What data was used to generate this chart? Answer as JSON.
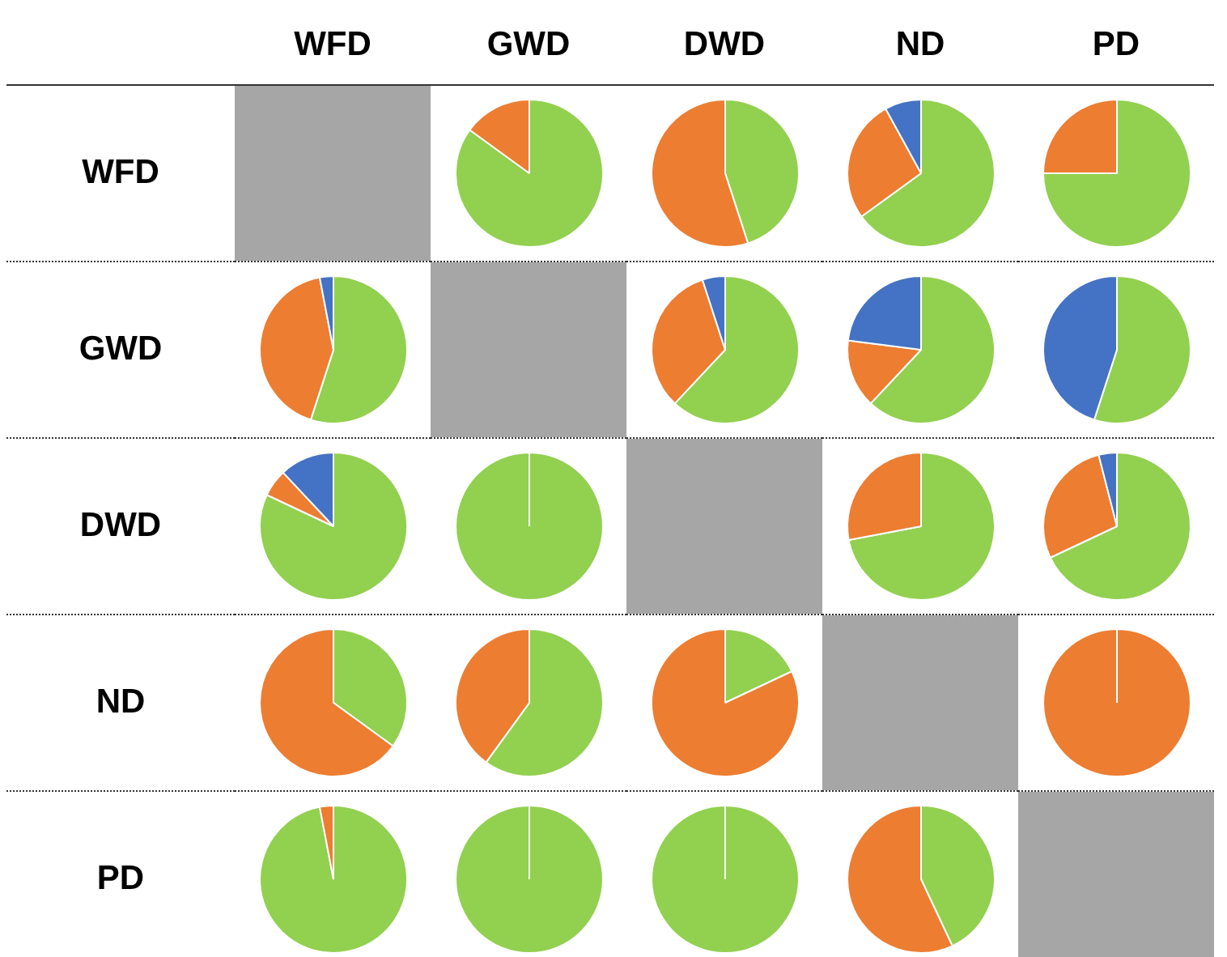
{
  "chart_data": [
    {
      "type": "other",
      "categories": [
        "WFD",
        "GWD",
        "DWD",
        "ND",
        "PD"
      ],
      "y_categories": [
        "WFD",
        "GWD",
        "DWD",
        "ND",
        "PD"
      ]
    },
    {
      "type": "pie",
      "categories": [
        null,
        null,
        null
      ],
      "values": [
        85,
        15,
        0
      ],
      "colors": [
        "#92d050",
        "#ed7d31",
        "#4472c4"
      ]
    },
    {
      "type": "pie",
      "categories": [
        null,
        null,
        null
      ],
      "values": [
        45,
        55,
        0
      ],
      "colors": [
        "#92d050",
        "#ed7d31",
        "#4472c4"
      ]
    },
    {
      "type": "pie",
      "categories": [
        null,
        null,
        null
      ],
      "values": [
        65,
        27,
        8
      ],
      "colors": [
        "#92d050",
        "#ed7d31",
        "#4472c4"
      ]
    },
    {
      "type": "pie",
      "categories": [
        null,
        null,
        null
      ],
      "values": [
        75,
        25,
        0
      ],
      "colors": [
        "#92d050",
        "#ed7d31",
        "#4472c4"
      ]
    },
    {
      "type": "pie",
      "categories": [
        null,
        null,
        null
      ],
      "values": [
        55,
        42,
        3
      ],
      "colors": [
        "#92d050",
        "#ed7d31",
        "#4472c4"
      ]
    },
    {
      "type": "pie",
      "categories": [
        null,
        null,
        null
      ],
      "values": [
        62,
        33,
        5
      ],
      "colors": [
        "#92d050",
        "#ed7d31",
        "#4472c4"
      ]
    },
    {
      "type": "pie",
      "categories": [
        null,
        null,
        null
      ],
      "values": [
        62,
        15,
        23
      ],
      "colors": [
        "#92d050",
        "#ed7d31",
        "#4472c4"
      ]
    },
    {
      "type": "pie",
      "categories": [
        null,
        null,
        null
      ],
      "values": [
        55,
        0,
        45
      ],
      "colors": [
        "#92d050",
        "#ed7d31",
        "#4472c4"
      ]
    },
    {
      "type": "pie",
      "categories": [
        null,
        null,
        null
      ],
      "values": [
        82,
        6,
        12
      ],
      "colors": [
        "#92d050",
        "#ed7d31",
        "#4472c4"
      ]
    },
    {
      "type": "pie",
      "categories": [
        null,
        null,
        null
      ],
      "values": [
        100,
        0,
        0
      ],
      "colors": [
        "#92d050",
        "#ed7d31",
        "#4472c4"
      ]
    },
    {
      "type": "pie",
      "categories": [
        null,
        null,
        null
      ],
      "values": [
        72,
        28,
        0
      ],
      "colors": [
        "#92d050",
        "#ed7d31",
        "#4472c4"
      ]
    },
    {
      "type": "pie",
      "categories": [
        null,
        null,
        null
      ],
      "values": [
        68,
        28,
        4
      ],
      "colors": [
        "#92d050",
        "#ed7d31",
        "#4472c4"
      ]
    },
    {
      "type": "pie",
      "categories": [
        null,
        null,
        null
      ],
      "values": [
        35,
        65,
        0
      ],
      "colors": [
        "#92d050",
        "#ed7d31",
        "#4472c4"
      ]
    },
    {
      "type": "pie",
      "categories": [
        null,
        null,
        null
      ],
      "values": [
        60,
        40,
        0
      ],
      "colors": [
        "#92d050",
        "#ed7d31",
        "#4472c4"
      ]
    },
    {
      "type": "pie",
      "categories": [
        null,
        null,
        null
      ],
      "values": [
        18,
        82,
        0
      ],
      "colors": [
        "#92d050",
        "#ed7d31",
        "#4472c4"
      ]
    },
    {
      "type": "pie",
      "categories": [
        null,
        null,
        null
      ],
      "values": [
        0,
        100,
        0
      ],
      "colors": [
        "#92d050",
        "#ed7d31",
        "#4472c4"
      ]
    },
    {
      "type": "pie",
      "categories": [
        null,
        null,
        null
      ],
      "values": [
        97,
        3,
        0
      ],
      "colors": [
        "#92d050",
        "#ed7d31",
        "#4472c4"
      ]
    },
    {
      "type": "pie",
      "categories": [
        null,
        null,
        null
      ],
      "values": [
        100,
        0,
        0
      ],
      "colors": [
        "#92d050",
        "#ed7d31",
        "#4472c4"
      ]
    },
    {
      "type": "pie",
      "categories": [
        null,
        null,
        null
      ],
      "values": [
        100,
        0,
        0
      ],
      "colors": [
        "#92d050",
        "#ed7d31",
        "#4472c4"
      ]
    },
    {
      "type": "pie",
      "categories": [
        null,
        null,
        null
      ],
      "values": [
        43,
        57,
        0
      ],
      "colors": [
        "#92d050",
        "#ed7d31",
        "#4472c4"
      ]
    }
  ]
}
